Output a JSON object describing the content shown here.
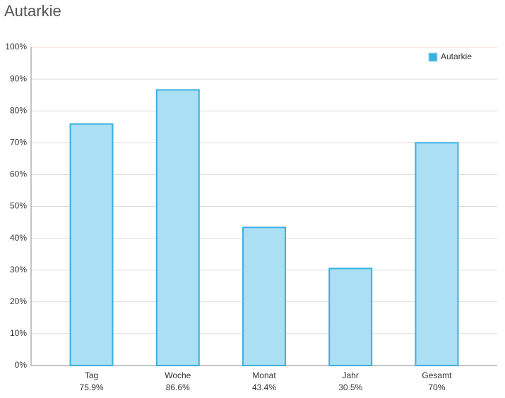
{
  "chart_data": {
    "type": "bar",
    "title": "Autarkie",
    "categories": [
      "Tag",
      "Woche",
      "Monat",
      "Jahr",
      "Gesamt"
    ],
    "series": [
      {
        "name": "Autarkie",
        "color": "#3ab0e0",
        "fill": "#abdff4",
        "values": [
          75.9,
          86.6,
          43.4,
          30.5,
          70
        ],
        "value_labels": [
          "75.9%",
          "86.6%",
          "43.4%",
          "30.5%",
          "70%"
        ]
      }
    ],
    "ylim": [
      0,
      100
    ],
    "yticks": [
      {
        "value": 0,
        "label": "0%"
      },
      {
        "value": 10,
        "label": "10%"
      },
      {
        "value": 20,
        "label": "20%"
      },
      {
        "value": 30,
        "label": "30%"
      },
      {
        "value": 40,
        "label": "40%"
      },
      {
        "value": 50,
        "label": "50%"
      },
      {
        "value": 60,
        "label": "60%"
      },
      {
        "value": 70,
        "label": "70%"
      },
      {
        "value": 80,
        "label": "80%"
      },
      {
        "value": 90,
        "label": "90%"
      },
      {
        "value": 100,
        "label": "100%"
      }
    ],
    "grid": true,
    "legend": "top-right"
  }
}
